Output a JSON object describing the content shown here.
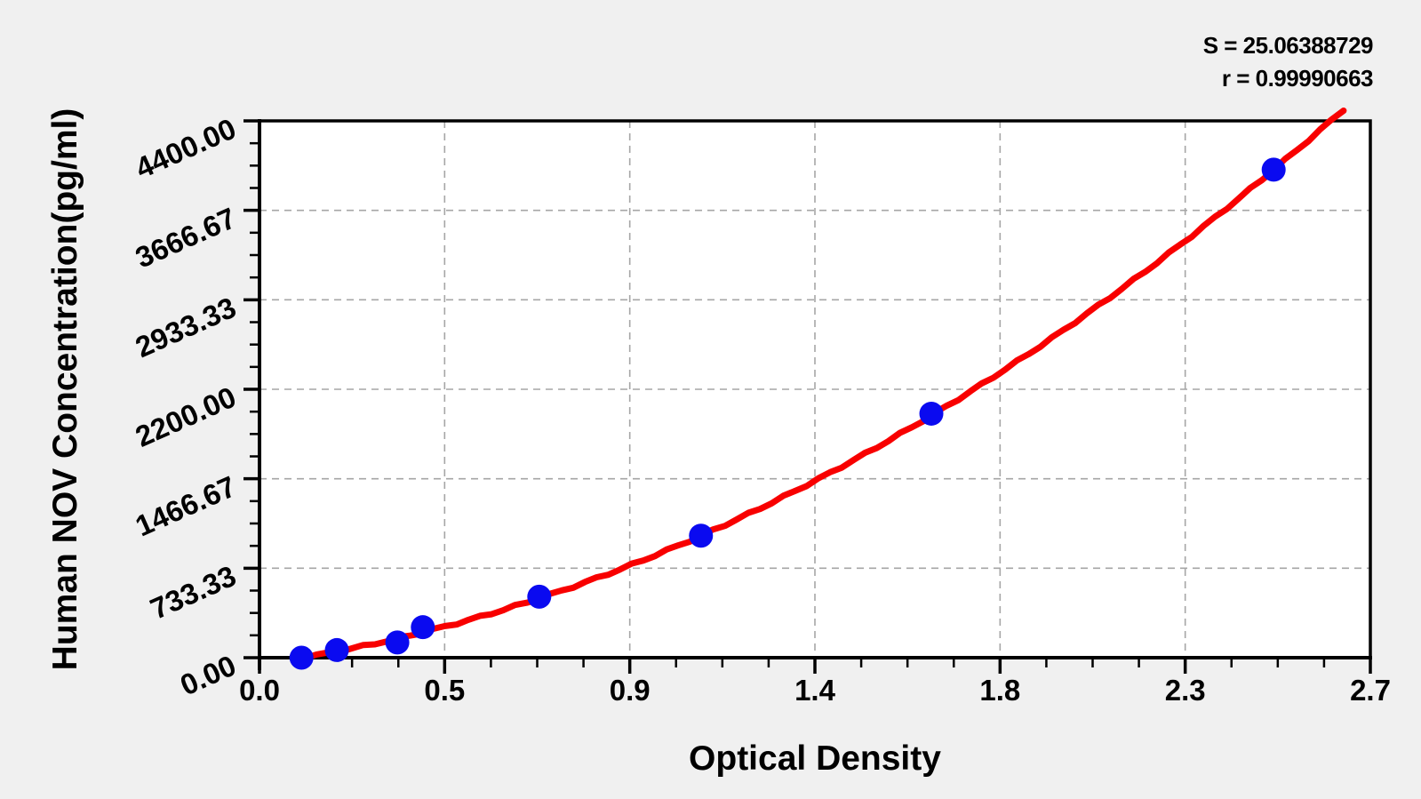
{
  "figure": {
    "background_color": "#f0f0f0",
    "plot_background_color": "#ffffff"
  },
  "stats": {
    "s_line": "S = 25.06388729",
    "r_line": "r = 0.99990663"
  },
  "chart_data": {
    "type": "scatter",
    "title": "",
    "xlabel": "Optical Density",
    "ylabel": "Human NOV Concentration(pg/ml)",
    "xlim": [
      0,
      2.7
    ],
    "ylim": [
      0,
      4400
    ],
    "x_major_ticks": {
      "values": [
        0,
        0.45,
        0.9,
        1.35,
        1.8,
        2.25,
        2.7
      ],
      "labels": [
        "0.0",
        "0.5",
        "0.9",
        "1.4",
        "1.8",
        "2.3",
        "2.7"
      ]
    },
    "y_major_ticks": {
      "values": [
        0,
        733.33,
        1466.67,
        2200,
        2933.33,
        3666.67,
        4400
      ],
      "labels": [
        "0.00",
        "733.33",
        "1466.67",
        "2200.00",
        "2933.33",
        "3666.67",
        "4400.00"
      ]
    },
    "minor_ticks_between_majors": 3,
    "grid": {
      "style": "dashed",
      "at": "major-ticks",
      "color": "#a6a6a6"
    },
    "legend": "none",
    "points": [
      {
        "x": 0.102,
        "y": 0
      },
      {
        "x": 0.188,
        "y": 62.5
      },
      {
        "x": 0.335,
        "y": 125
      },
      {
        "x": 0.397,
        "y": 250
      },
      {
        "x": 0.68,
        "y": 500
      },
      {
        "x": 1.073,
        "y": 1000
      },
      {
        "x": 1.633,
        "y": 2000
      },
      {
        "x": 2.465,
        "y": 4000
      }
    ],
    "fit_curve": {
      "model": "quadratic",
      "a": 475.7,
      "b": 472.1,
      "c": -54.2,
      "x_range": [
        0.082,
        2.635
      ]
    },
    "stats": {
      "S": "25.06388729",
      "r": "0.99990663"
    },
    "colors": {
      "point": "#0a0af0",
      "curve": "#f80000",
      "axis": "#000000",
      "grid": "#a6a6a6",
      "text": "#000000"
    }
  }
}
